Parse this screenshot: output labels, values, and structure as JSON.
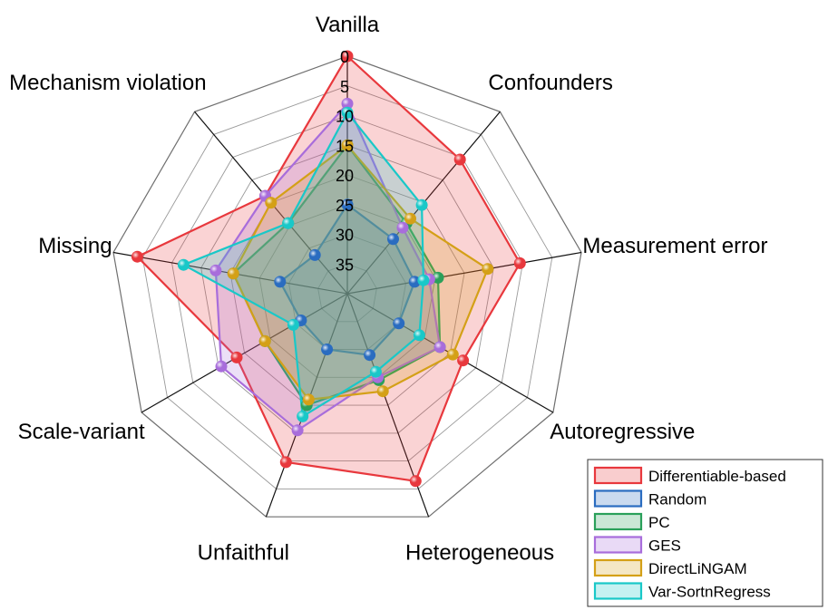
{
  "chart_data": {
    "type": "radar",
    "title": "",
    "axes": [
      "Vanilla",
      "Confounders",
      "Measurement error",
      "Autoregressive",
      "Heterogeneous",
      "Unfaithful",
      "Scale-variant",
      "Missing",
      "Mechanism violation"
    ],
    "rlim": [
      0,
      40
    ],
    "reversed_radial_axis": true,
    "radial_ticks": [
      0,
      5,
      10,
      15,
      20,
      25,
      30,
      35
    ],
    "grid": true,
    "legend_position": "bottom-right",
    "series": [
      {
        "name": "Differentiable-based",
        "color": "#e8383d",
        "values": [
          0,
          10.5,
          10.5,
          17.5,
          6.4,
          9.8,
          18.5,
          4.1,
          18.5
        ]
      },
      {
        "name": "Random",
        "color": "#2a6cc0",
        "values": [
          25,
          28,
          28.5,
          30,
          29,
          30,
          31,
          28.5,
          31.5
        ]
      },
      {
        "name": "PC",
        "color": "#2aa05a",
        "values": [
          15,
          24.5,
          24.5,
          22,
          24.5,
          20,
          24,
          20.5,
          24.5
        ]
      },
      {
        "name": "GES",
        "color": "#a86ddb",
        "values": [
          8,
          25.5,
          26,
          22,
          25,
          15.5,
          15.5,
          17.5,
          18.5
        ]
      },
      {
        "name": "DirectLiNGAM",
        "color": "#d4a017",
        "values": [
          15,
          23.5,
          16,
          19.5,
          22.5,
          21,
          24,
          20.5,
          20
        ]
      },
      {
        "name": "Var-SortnRegress",
        "color": "#19c8c8",
        "values": [
          9.5,
          20.5,
          27,
          26,
          26,
          18,
          29.5,
          12,
          24.5
        ]
      }
    ]
  }
}
